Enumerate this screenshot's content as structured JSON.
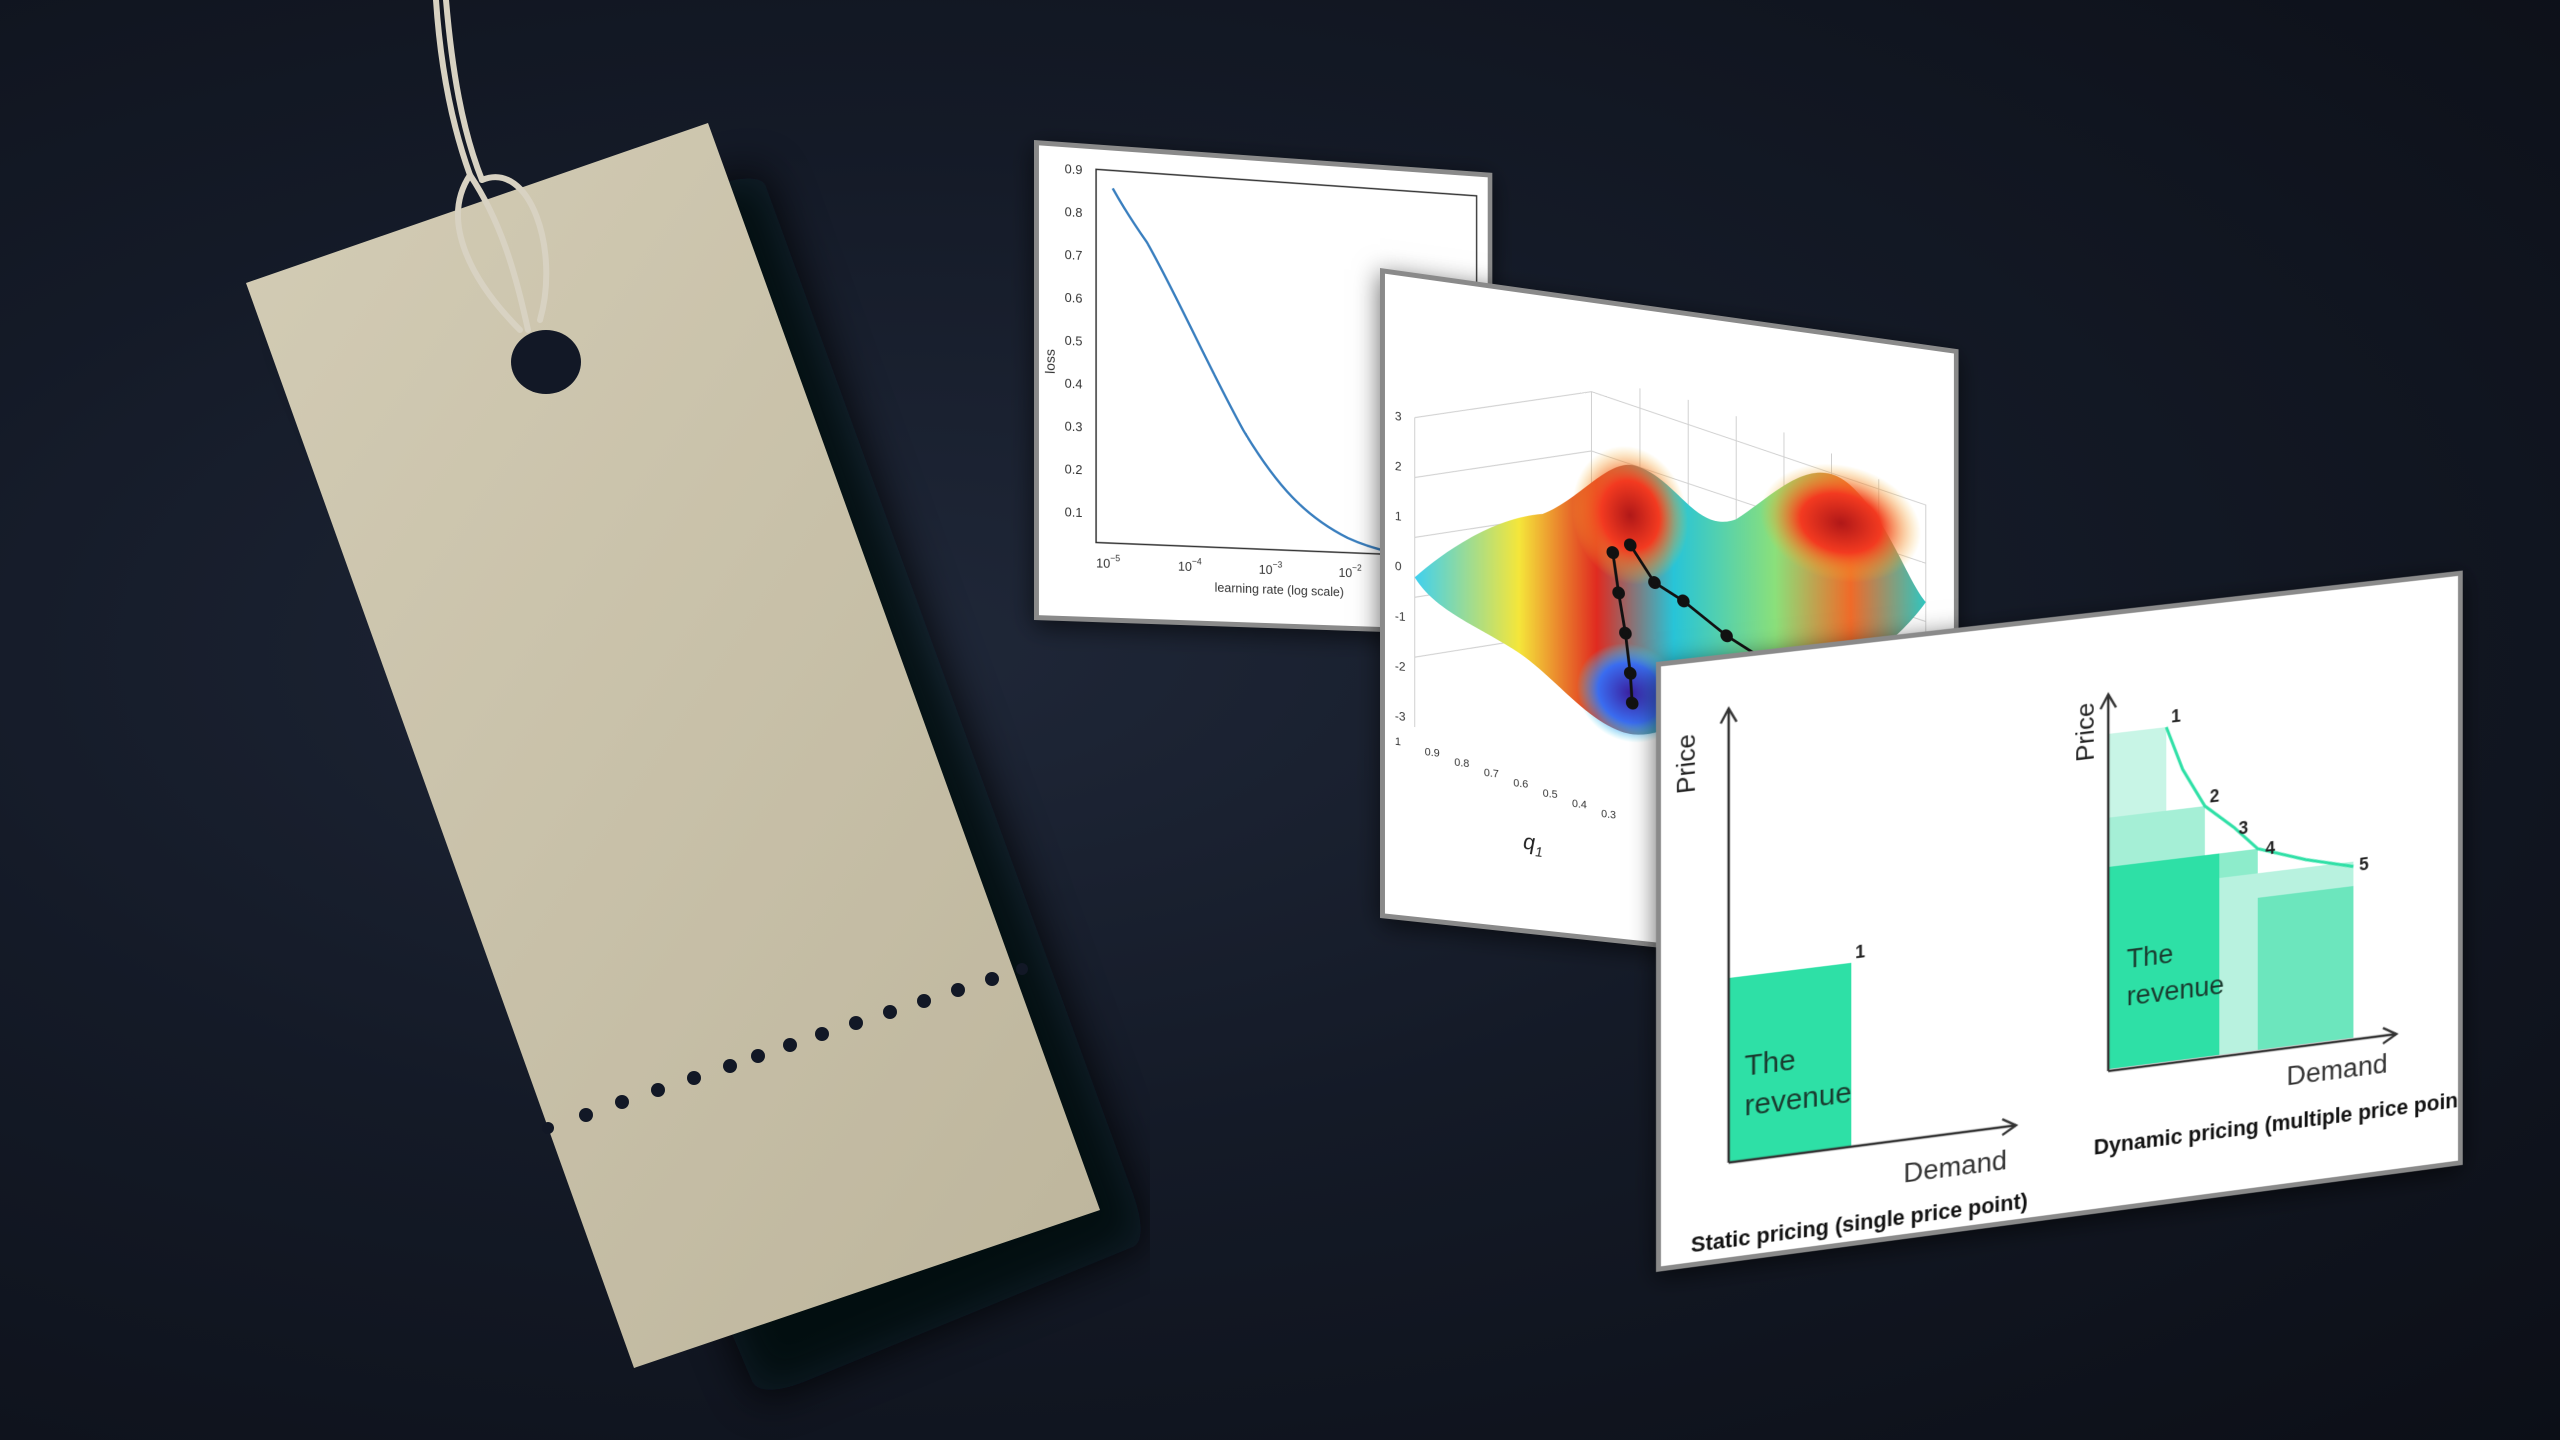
{
  "colors": {
    "background": "#141a27",
    "tag": "#c9c2ab",
    "revenue": "#2ee0a6",
    "curve": "#3a7fbf"
  },
  "loss_chart": {
    "ylabel": "loss",
    "xlabel": "learning rate (log scale)",
    "yticks": [
      "0.9",
      "0.8",
      "0.7",
      "0.6",
      "0.5",
      "0.4",
      "0.3",
      "0.2",
      "0.1"
    ],
    "xticks": [
      "10",
      "10",
      "10",
      "10"
    ],
    "xtick_exponents": [
      "−5",
      "−4",
      "−3",
      "−2"
    ]
  },
  "surface_chart": {
    "zticks": [
      "3",
      "2",
      "1",
      "0",
      "-1",
      "-2",
      "-3"
    ],
    "xticks": [
      "1",
      "0.9",
      "0.8",
      "0.7",
      "0.6",
      "0.5",
      "0.4",
      "0.3"
    ],
    "xlabel": "q",
    "xlabel_sub": "1"
  },
  "pricing": {
    "static": {
      "ylabel": "Price",
      "xlabel": "Demand",
      "box_label_line1": "The",
      "box_label_line2": "revenue",
      "points": [
        "1"
      ],
      "caption": "Static pricing (single price point)"
    },
    "dynamic": {
      "ylabel": "Price",
      "xlabel": "Demand",
      "box_label_line1": "The",
      "box_label_line2": "revenue",
      "points": [
        "1",
        "2",
        "3",
        "4",
        "5"
      ],
      "caption": "Dynamic pricing (multiple price point)"
    }
  }
}
